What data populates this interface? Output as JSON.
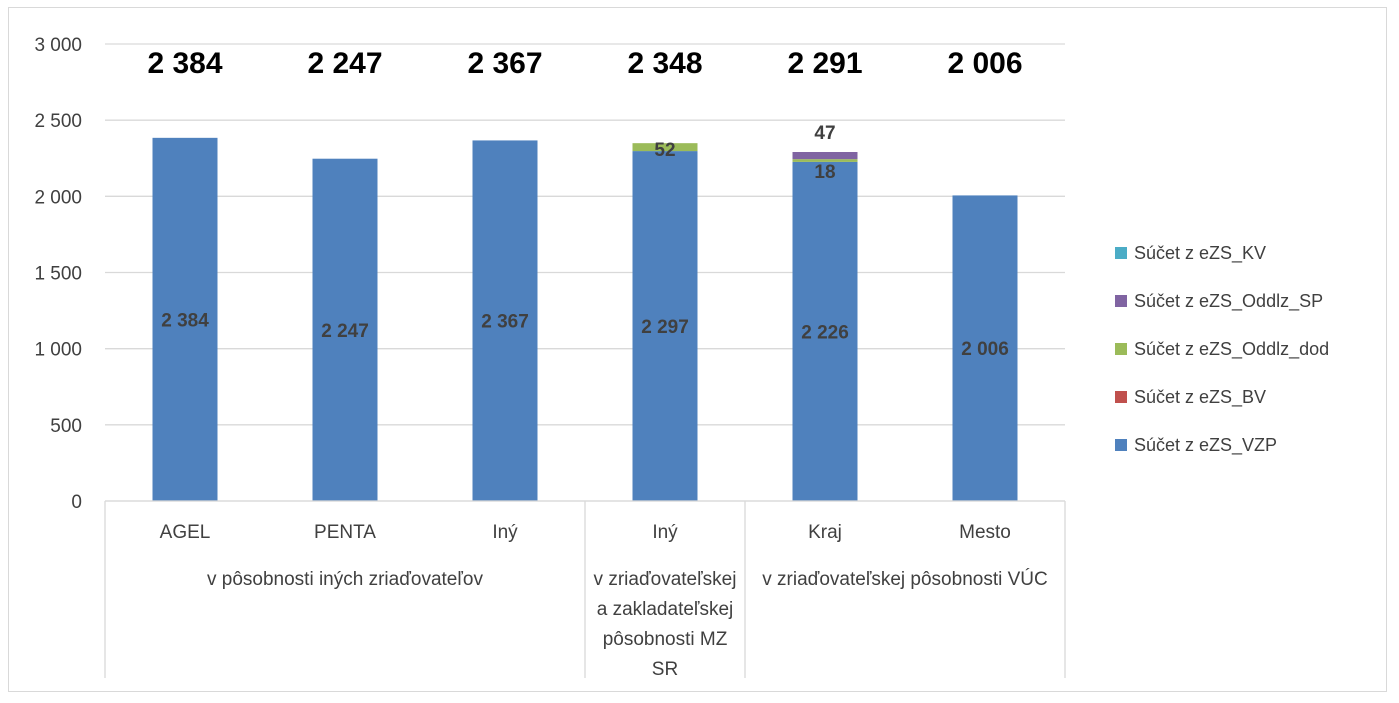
{
  "chart_data": {
    "type": "bar",
    "stacked": true,
    "categories": [
      "AGEL",
      "PENTA",
      "Iný",
      "Iný",
      "Kraj",
      "Mesto"
    ],
    "groups": [
      {
        "label": "v pôsobnosti iných zriaďovateľov",
        "lines": [
          "v pôsobnosti iných zriaďovateľov"
        ],
        "count": 3
      },
      {
        "label": "v zriaďovateľskej a zakladateľskej pôsobnosti MZ SR",
        "lines": [
          "v zriaďovateľskej",
          "a zakladateľskej",
          "pôsobnosti MZ",
          "SR"
        ],
        "count": 1
      },
      {
        "label": "v zriaďovateľskej pôsobnosti VÚC",
        "lines": [
          "v zriaďovateľskej pôsobnosti VÚC"
        ],
        "count": 2
      }
    ],
    "series": [
      {
        "name": "Súčet z eZS_VZP",
        "color": "#4f81bd",
        "values": [
          2384,
          2247,
          2367,
          2297,
          2226,
          2006
        ],
        "labels": [
          "2 384",
          "2 247",
          "2 367",
          "2 297",
          "2 226",
          "2 006"
        ]
      },
      {
        "name": "Súčet z eZS_BV",
        "color": "#c0504d",
        "values": [
          0,
          0,
          0,
          0,
          0,
          0
        ],
        "labels": [
          "",
          "",
          "",
          "",
          "",
          ""
        ]
      },
      {
        "name": "Súčet z eZS_Oddlz_dod",
        "color": "#9bbb59",
        "values": [
          0,
          0,
          0,
          52,
          18,
          0
        ],
        "labels": [
          "",
          "",
          "",
          "52",
          "18",
          ""
        ]
      },
      {
        "name": "Súčet z eZS_Oddlz_SP",
        "color": "#8064a2",
        "values": [
          0,
          0,
          0,
          0,
          47,
          0
        ],
        "labels": [
          "",
          "",
          "",
          "",
          "47",
          ""
        ]
      },
      {
        "name": "Súčet z eZS_KV",
        "color": "#4bacc6",
        "values": [
          0,
          0,
          0,
          0,
          0,
          0
        ],
        "labels": [
          "",
          "",
          "",
          "",
          "",
          ""
        ]
      }
    ],
    "totals": [
      "2 384",
      "2 247",
      "2 367",
      "2 348",
      "2 291",
      "2 006"
    ],
    "legend_order": [
      "Súčet z eZS_KV",
      "Súčet z eZS_Oddlz_SP",
      "Súčet z eZS_Oddlz_dod",
      "Súčet z eZS_BV",
      "Súčet z eZS_VZP"
    ],
    "ylim": [
      0,
      3000
    ],
    "yticks": [
      0,
      500,
      1000,
      1500,
      2000,
      2500,
      3000
    ],
    "ytick_labels": [
      "0",
      "500",
      "1 000",
      "1 500",
      "2 000",
      "2 500",
      "3 000"
    ],
    "grid": true,
    "legend_position": "right"
  }
}
